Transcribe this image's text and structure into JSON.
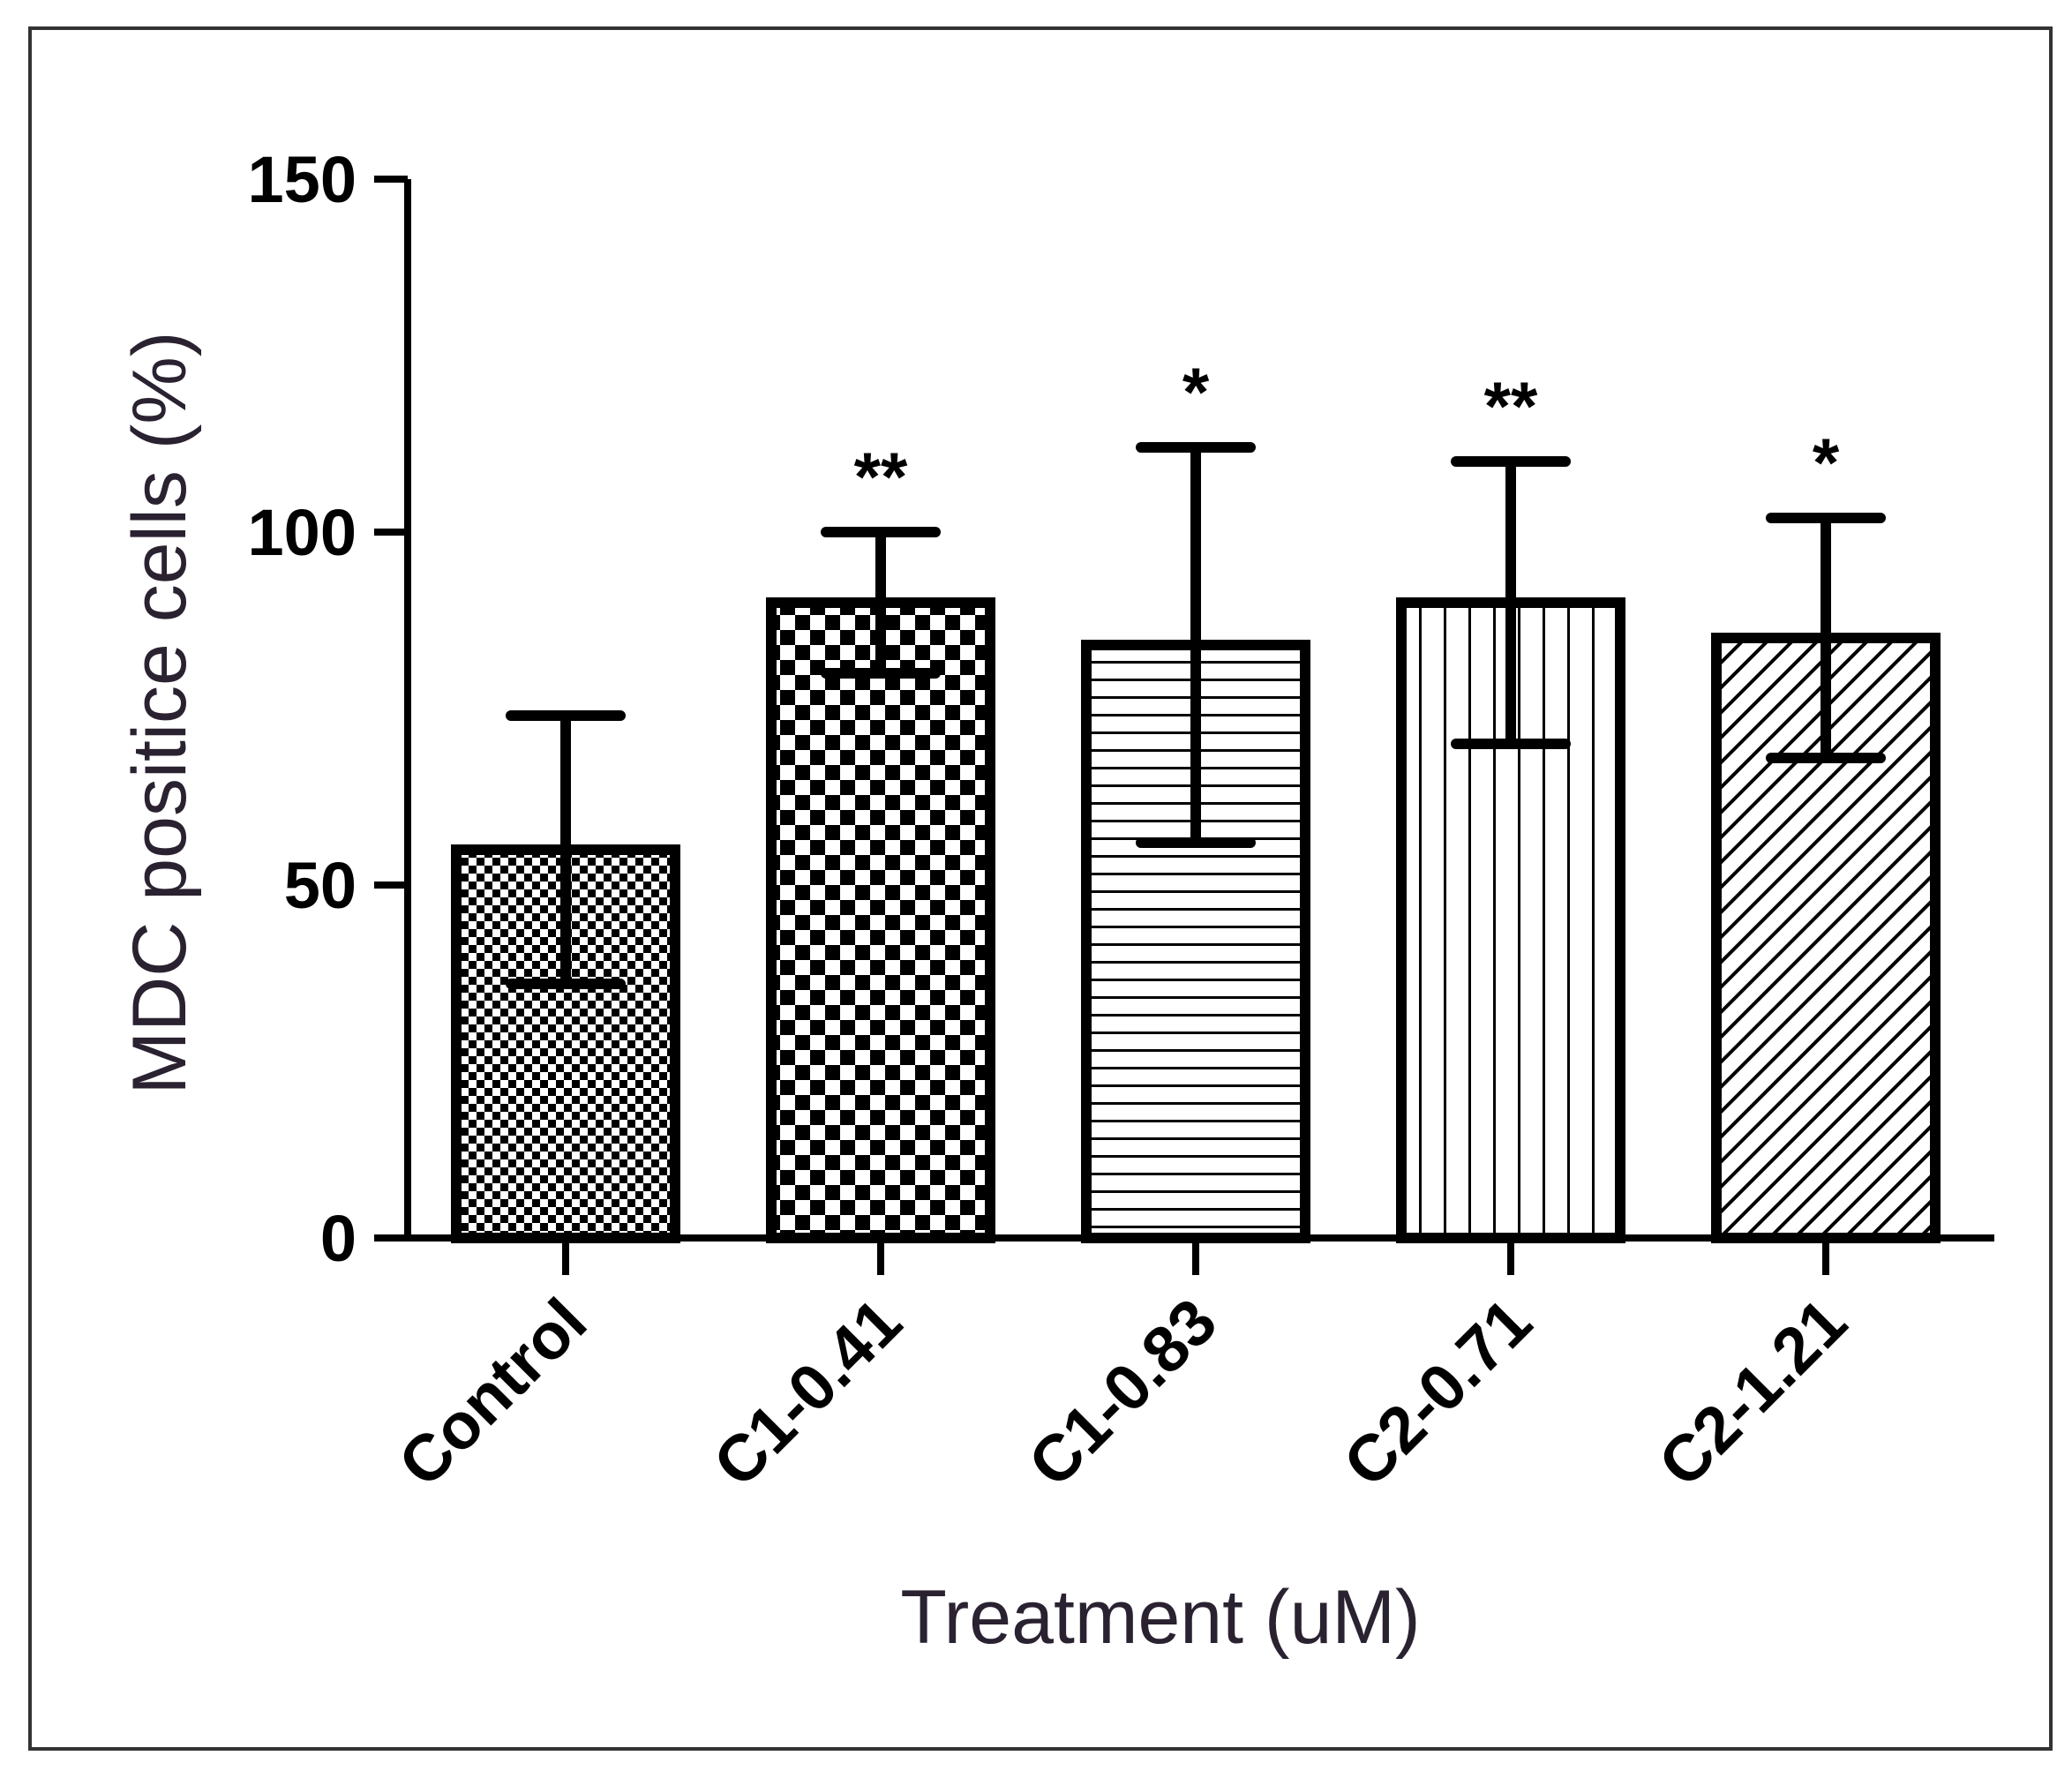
{
  "chart_data": {
    "type": "bar",
    "title": "",
    "xlabel": "Treatment (uM)",
    "ylabel": "MDC positice cells (%)",
    "ylim": [
      0,
      150
    ],
    "yticks": [
      "0",
      "50",
      "100",
      "150"
    ],
    "grid": false,
    "legend": "none",
    "categories": [
      "Control",
      "C1-0.41",
      "C1-0.83",
      "C2-0.71",
      "C2-1.21"
    ],
    "values": [
      55,
      90,
      84,
      90,
      85
    ],
    "error": [
      19,
      10,
      28,
      20,
      17
    ],
    "annotations": [
      "",
      "**",
      "*",
      "**",
      "*"
    ],
    "patterns": [
      "fine-checker",
      "checker",
      "horizontal-lines",
      "vertical-lines",
      "diagonal-lines"
    ],
    "colors": {
      "bar_stroke": "#000000",
      "fill": "#ffffff",
      "axis": "#000000",
      "frame": "#333333"
    }
  }
}
